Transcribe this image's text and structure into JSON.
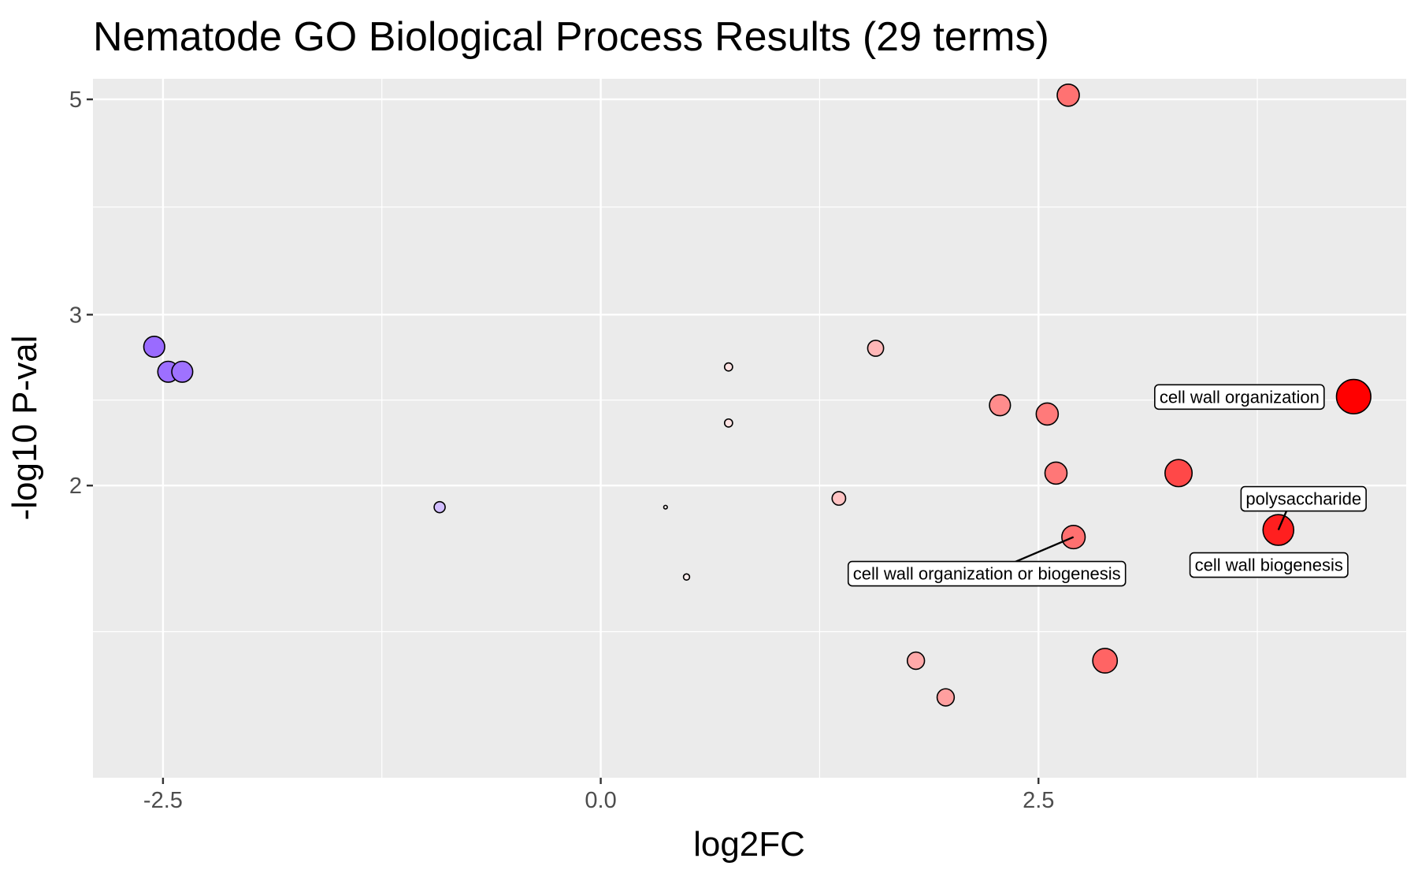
{
  "chart_data": {
    "type": "scatter",
    "title": "Nematode GO Biological Process Results (29 terms)",
    "xlabel": "log2FC",
    "ylabel": "-log10 P-val",
    "xlim": [
      -2.9,
      4.6
    ],
    "ylim": [
      1.0,
      5.25
    ],
    "x_ticks": [
      -2.5,
      0.0,
      2.5
    ],
    "x_tick_labels": [
      "-2.5",
      "0.0",
      "2.5"
    ],
    "y_ticks": [
      2,
      3,
      5
    ],
    "y_tick_labels": [
      "2",
      "3",
      "5"
    ],
    "y_scale": "log10",
    "grid": true,
    "legend": "none",
    "colors": {
      "down_max": "#9a6bff",
      "neutral": "#ffffff",
      "up_max": "#ff0000"
    },
    "points": [
      {
        "x": -2.55,
        "y": 2.78,
        "size": 3.4
      },
      {
        "x": -2.47,
        "y": 2.62,
        "size": 3.4
      },
      {
        "x": -2.39,
        "y": 2.62,
        "size": 3.4
      },
      {
        "x": -0.92,
        "y": 1.9,
        "size": 1.8
      },
      {
        "x": 0.37,
        "y": 1.9,
        "size": 0.6
      },
      {
        "x": 0.49,
        "y": 1.61,
        "size": 1.0
      },
      {
        "x": 0.73,
        "y": 2.65,
        "size": 1.3
      },
      {
        "x": 0.73,
        "y": 2.32,
        "size": 1.3
      },
      {
        "x": 1.36,
        "y": 1.94,
        "size": 2.2
      },
      {
        "x": 1.57,
        "y": 2.77,
        "size": 2.6
      },
      {
        "x": 1.8,
        "y": 1.32,
        "size": 2.8
      },
      {
        "x": 1.97,
        "y": 1.21,
        "size": 2.8
      },
      {
        "x": 2.28,
        "y": 2.42,
        "size": 3.4
      },
      {
        "x": 2.55,
        "y": 2.37,
        "size": 3.6
      },
      {
        "x": 2.6,
        "y": 2.06,
        "size": 3.6
      },
      {
        "x": 2.67,
        "y": 5.05,
        "size": 3.6
      },
      {
        "x": 2.7,
        "y": 1.77,
        "size": 3.8
      },
      {
        "x": 2.88,
        "y": 1.32,
        "size": 4.0
      },
      {
        "x": 3.3,
        "y": 2.06,
        "size": 4.4
      },
      {
        "x": 3.87,
        "y": 1.8,
        "size": 5.0
      },
      {
        "x": 4.3,
        "y": 2.47,
        "size": 5.6
      }
    ],
    "annotations": [
      {
        "text": "cell wall organization",
        "x": 4.3,
        "y": 2.47
      },
      {
        "text": "polysaccharide",
        "x": 3.87,
        "y": 1.8
      },
      {
        "text": "cell wall biogenesis",
        "x": 3.87,
        "y": 1.8
      },
      {
        "text": "cell wall organization or biogenesis",
        "x": 2.7,
        "y": 1.77
      }
    ]
  }
}
